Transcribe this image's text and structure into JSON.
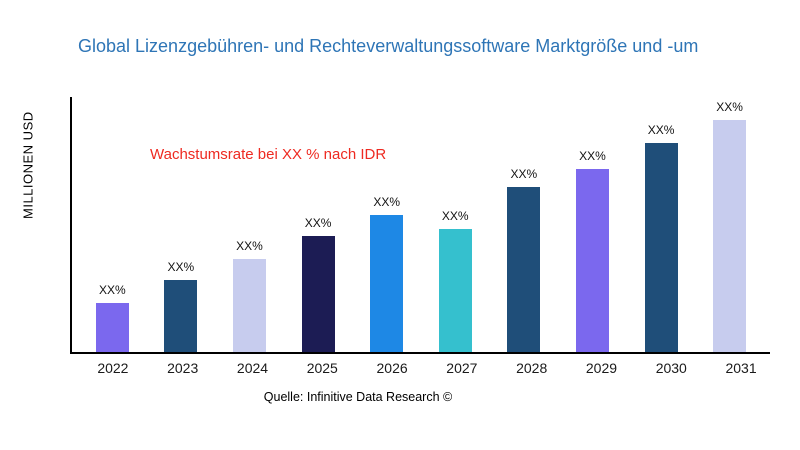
{
  "title": "Global Lizenzgebühren- und Rechteverwaltungssoftware Marktgröße und -um",
  "annotation": "Wachstumsrate bei XX % nach IDR",
  "source": "Quelle: Infinitive Data Research ©",
  "ylabel": "MILLIONEN USD",
  "colors": {
    "title": "#2E75B6",
    "annotation": "#ee2a21",
    "axis": "#000000"
  },
  "chart_data": {
    "type": "bar",
    "title": "Global Lizenzgebühren- und Rechteverwaltungssoftware Marktgröße und -um",
    "categories": [
      "2022",
      "2023",
      "2024",
      "2025",
      "2026",
      "2027",
      "2028",
      "2029",
      "2030",
      "2031"
    ],
    "values": [
      21,
      31,
      40,
      50,
      59,
      53,
      71,
      79,
      90,
      100
    ],
    "bar_labels": [
      "XX%",
      "XX%",
      "XX%",
      "XX%",
      "XX%",
      "XX%",
      "XX%",
      "XX%",
      "XX%",
      "XX%"
    ],
    "bar_colors": [
      "#7B68EE",
      "#1F4E79",
      "#C7CCEE",
      "#1C1C54",
      "#1E88E5",
      "#35C0CE",
      "#1F4E79",
      "#7B68EE",
      "#1F4E79",
      "#C7CCEE"
    ],
    "xlabel": "",
    "ylabel": "MILLIONEN USD",
    "ylim": [
      0,
      110
    ],
    "grid": false,
    "legend": "none",
    "annotation": "Wachstumsrate bei XX % nach IDR",
    "source": "Quelle: Infinitive Data Research ©"
  }
}
